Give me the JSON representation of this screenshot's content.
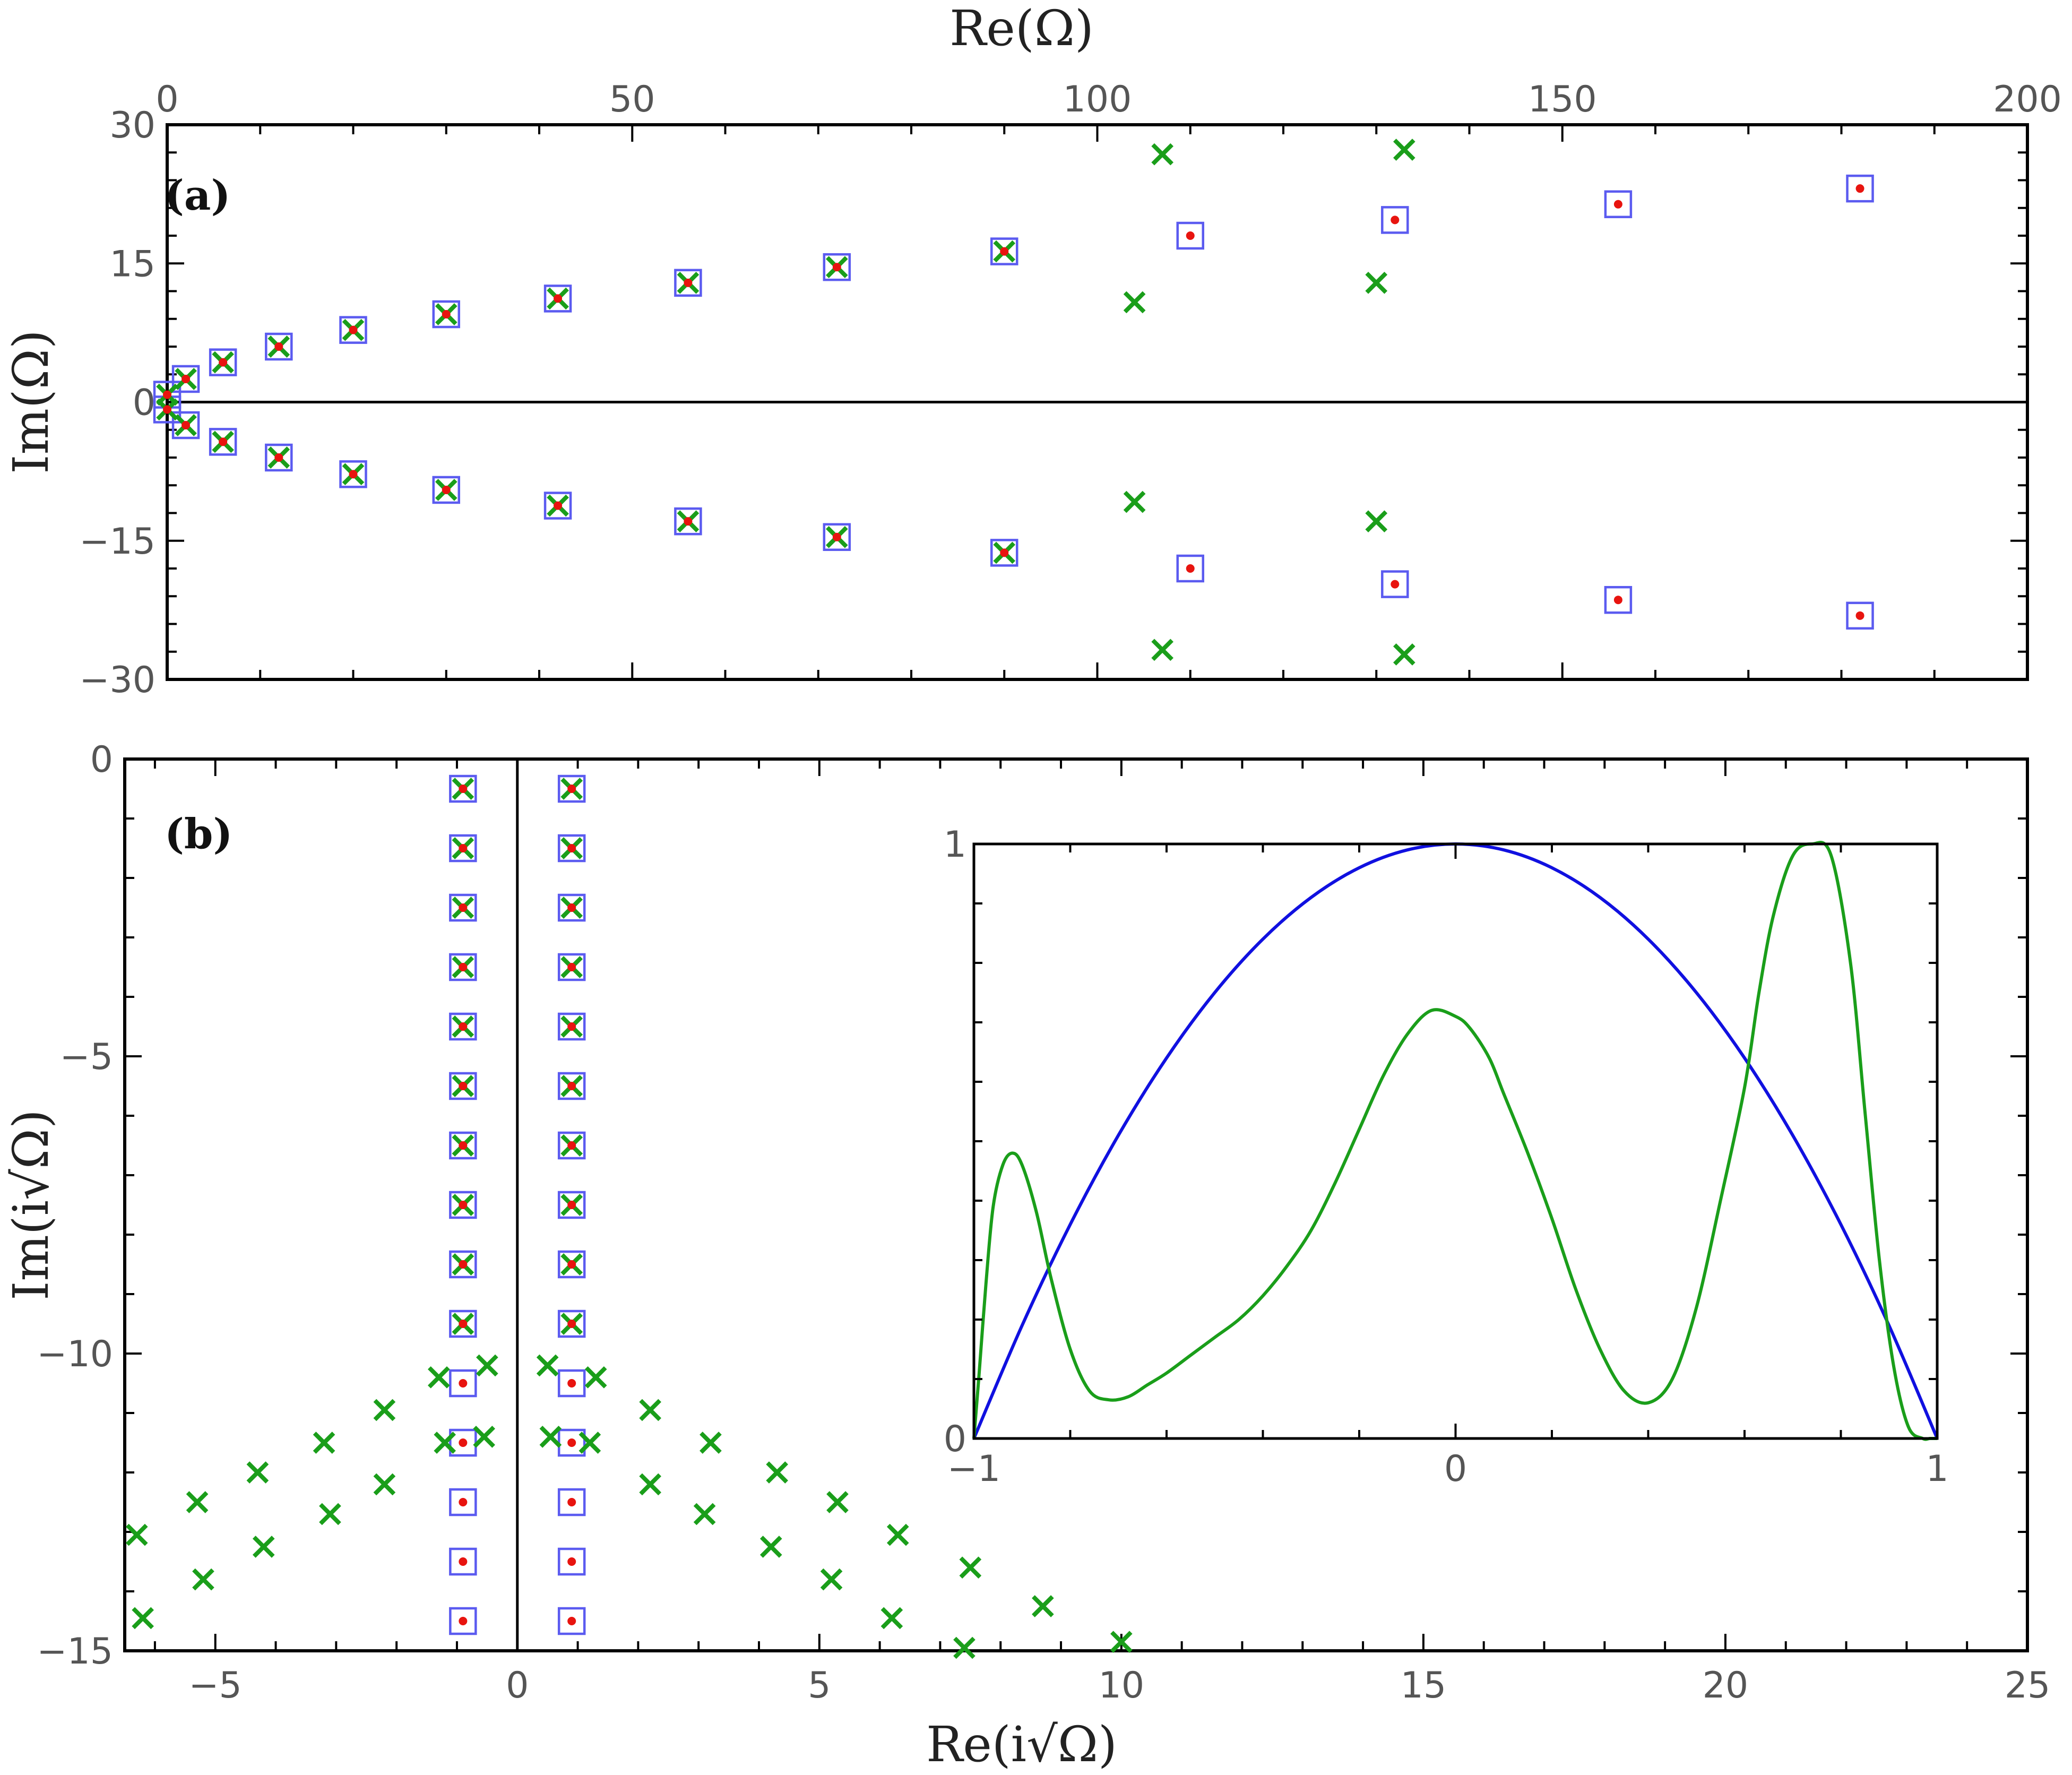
{
  "colors": {
    "square": "#5b5bf0",
    "cross": "#1a9e1a",
    "dot": "#e8140f",
    "inset_blue": "#1010e0",
    "inset_green": "#1a9e1a",
    "axis": "#000000"
  },
  "chart_data": [
    {
      "id": "a",
      "type": "scatter",
      "panel_label": "(a)",
      "xlabel": "Re(Ω)",
      "ylabel": "Im(Ω)",
      "xlim": [
        0,
        200
      ],
      "ylim": [
        -30,
        30
      ],
      "x_axis_position": "top",
      "xticks": [
        0,
        50,
        100,
        150,
        200
      ],
      "yticks": [
        -30,
        -15,
        0,
        15,
        30
      ],
      "xtick_labels": [
        "0",
        "50",
        "100",
        "150",
        "200"
      ],
      "ytick_labels": [
        "−30",
        "−15",
        "0",
        "15",
        "30"
      ],
      "zero_line": "y=0",
      "series": [
        {
          "marker": "square",
          "points": [
            [
              0,
              0.8
            ],
            [
              0,
              -0.8
            ],
            [
              2,
              2.5
            ],
            [
              2,
              -2.5
            ],
            [
              6,
              4.3
            ],
            [
              6,
              -4.3
            ],
            [
              12,
              6.0
            ],
            [
              12,
              -6.0
            ],
            [
              20,
              7.8
            ],
            [
              20,
              -7.8
            ],
            [
              30,
              9.5
            ],
            [
              30,
              -9.5
            ],
            [
              42,
              11.2
            ],
            [
              42,
              -11.2
            ],
            [
              56,
              12.9
            ],
            [
              56,
              -12.9
            ],
            [
              72,
              14.6
            ],
            [
              72,
              -14.6
            ],
            [
              90,
              16.3
            ],
            [
              90,
              -16.3
            ],
            [
              110,
              18.0
            ],
            [
              110,
              -18.0
            ],
            [
              132,
              19.7
            ],
            [
              132,
              -19.7
            ],
            [
              156,
              21.4
            ],
            [
              156,
              -21.4
            ],
            [
              182,
              23.1
            ],
            [
              182,
              -23.1
            ]
          ]
        },
        {
          "marker": "dot",
          "points": [
            [
              0,
              0.8
            ],
            [
              0,
              -0.8
            ],
            [
              2,
              2.5
            ],
            [
              2,
              -2.5
            ],
            [
              6,
              4.3
            ],
            [
              6,
              -4.3
            ],
            [
              12,
              6.0
            ],
            [
              12,
              -6.0
            ],
            [
              20,
              7.8
            ],
            [
              20,
              -7.8
            ],
            [
              30,
              9.5
            ],
            [
              30,
              -9.5
            ],
            [
              42,
              11.2
            ],
            [
              42,
              -11.2
            ],
            [
              56,
              12.9
            ],
            [
              56,
              -12.9
            ],
            [
              72,
              14.6
            ],
            [
              72,
              -14.6
            ],
            [
              90,
              16.3
            ],
            [
              90,
              -16.3
            ],
            [
              110,
              18.0
            ],
            [
              110,
              -18.0
            ],
            [
              132,
              19.7
            ],
            [
              132,
              -19.7
            ],
            [
              156,
              21.4
            ],
            [
              156,
              -21.4
            ],
            [
              182,
              23.1
            ],
            [
              182,
              -23.1
            ]
          ]
        },
        {
          "marker": "cross",
          "points": [
            [
              0,
              0.8
            ],
            [
              0,
              -0.8
            ],
            [
              2,
              2.5
            ],
            [
              2,
              -2.5
            ],
            [
              6,
              4.3
            ],
            [
              6,
              -4.3
            ],
            [
              12,
              6.0
            ],
            [
              12,
              -6.0
            ],
            [
              20,
              7.8
            ],
            [
              20,
              -7.8
            ],
            [
              30,
              9.5
            ],
            [
              30,
              -9.5
            ],
            [
              42,
              11.2
            ],
            [
              42,
              -11.2
            ],
            [
              56,
              12.9
            ],
            [
              56,
              -12.9
            ],
            [
              72,
              14.6
            ],
            [
              72,
              -14.6
            ],
            [
              90,
              16.3
            ],
            [
              90,
              -16.3
            ],
            [
              104,
              10.8
            ],
            [
              104,
              -10.8
            ],
            [
              107,
              26.8
            ],
            [
              107,
              -26.8
            ],
            [
              130,
              12.9
            ],
            [
              130,
              -12.9
            ],
            [
              133,
              27.3
            ],
            [
              133,
              -27.3
            ]
          ]
        }
      ]
    },
    {
      "id": "b",
      "type": "scatter",
      "panel_label": "(b)",
      "xlabel": "Re(i√Ω)",
      "ylabel": "Im(i√Ω)",
      "xlim": [
        -6.5,
        25
      ],
      "ylim": [
        -15,
        0
      ],
      "xticks": [
        -5,
        0,
        5,
        10,
        15,
        20,
        25
      ],
      "yticks": [
        -15,
        -10,
        -5,
        0
      ],
      "xtick_labels": [
        "−5",
        "0",
        "5",
        "10",
        "15",
        "20",
        "25"
      ],
      "ytick_labels": [
        "−15",
        "−10",
        "−5",
        "0"
      ],
      "zero_line": "x=0",
      "series": [
        {
          "marker": "square",
          "points": [
            [
              -0.9,
              -0.5
            ],
            [
              0.9,
              -0.5
            ],
            [
              -0.9,
              -1.5
            ],
            [
              0.9,
              -1.5
            ],
            [
              -0.9,
              -2.5
            ],
            [
              0.9,
              -2.5
            ],
            [
              -0.9,
              -3.5
            ],
            [
              0.9,
              -3.5
            ],
            [
              -0.9,
              -4.5
            ],
            [
              0.9,
              -4.5
            ],
            [
              -0.9,
              -5.5
            ],
            [
              0.9,
              -5.5
            ],
            [
              -0.9,
              -6.5
            ],
            [
              0.9,
              -6.5
            ],
            [
              -0.9,
              -7.5
            ],
            [
              0.9,
              -7.5
            ],
            [
              -0.9,
              -8.5
            ],
            [
              0.9,
              -8.5
            ],
            [
              -0.9,
              -9.5
            ],
            [
              0.9,
              -9.5
            ],
            [
              -0.9,
              -10.5
            ],
            [
              0.9,
              -10.5
            ],
            [
              -0.9,
              -11.5
            ],
            [
              0.9,
              -11.5
            ],
            [
              -0.9,
              -12.5
            ],
            [
              0.9,
              -12.5
            ],
            [
              -0.9,
              -13.5
            ],
            [
              0.9,
              -13.5
            ],
            [
              -0.9,
              -14.5
            ],
            [
              0.9,
              -14.5
            ]
          ]
        },
        {
          "marker": "dot",
          "points": [
            [
              -0.9,
              -0.5
            ],
            [
              0.9,
              -0.5
            ],
            [
              -0.9,
              -1.5
            ],
            [
              0.9,
              -1.5
            ],
            [
              -0.9,
              -2.5
            ],
            [
              0.9,
              -2.5
            ],
            [
              -0.9,
              -3.5
            ],
            [
              0.9,
              -3.5
            ],
            [
              -0.9,
              -4.5
            ],
            [
              0.9,
              -4.5
            ],
            [
              -0.9,
              -5.5
            ],
            [
              0.9,
              -5.5
            ],
            [
              -0.9,
              -6.5
            ],
            [
              0.9,
              -6.5
            ],
            [
              -0.9,
              -7.5
            ],
            [
              0.9,
              -7.5
            ],
            [
              -0.9,
              -8.5
            ],
            [
              0.9,
              -8.5
            ],
            [
              -0.9,
              -9.5
            ],
            [
              0.9,
              -9.5
            ],
            [
              -0.9,
              -10.5
            ],
            [
              0.9,
              -10.5
            ],
            [
              -0.9,
              -11.5
            ],
            [
              0.9,
              -11.5
            ],
            [
              -0.9,
              -12.5
            ],
            [
              0.9,
              -12.5
            ],
            [
              -0.9,
              -13.5
            ],
            [
              0.9,
              -13.5
            ],
            [
              -0.9,
              -14.5
            ],
            [
              0.9,
              -14.5
            ]
          ]
        },
        {
          "marker": "cross",
          "points": [
            [
              -0.9,
              -0.5
            ],
            [
              0.9,
              -0.5
            ],
            [
              -0.9,
              -1.5
            ],
            [
              0.9,
              -1.5
            ],
            [
              -0.9,
              -2.5
            ],
            [
              0.9,
              -2.5
            ],
            [
              -0.9,
              -3.5
            ],
            [
              0.9,
              -3.5
            ],
            [
              -0.9,
              -4.5
            ],
            [
              0.9,
              -4.5
            ],
            [
              -0.9,
              -5.5
            ],
            [
              0.9,
              -5.5
            ],
            [
              -0.9,
              -6.5
            ],
            [
              0.9,
              -6.5
            ],
            [
              -0.9,
              -7.5
            ],
            [
              0.9,
              -7.5
            ],
            [
              -0.9,
              -8.5
            ],
            [
              0.9,
              -8.5
            ],
            [
              -0.9,
              -9.5
            ],
            [
              0.9,
              -9.5
            ],
            [
              -1.3,
              -10.4
            ],
            [
              1.3,
              -10.4
            ],
            [
              -0.5,
              -10.2
            ],
            [
              0.5,
              -10.2
            ],
            [
              -0.55,
              -11.4
            ],
            [
              0.55,
              -11.4
            ],
            [
              -1.2,
              -11.5
            ],
            [
              1.2,
              -11.5
            ],
            [
              -2.2,
              -10.95
            ],
            [
              2.2,
              -10.95
            ],
            [
              -3.2,
              -11.5
            ],
            [
              3.2,
              -11.5
            ],
            [
              -2.2,
              -12.2
            ],
            [
              2.2,
              -12.2
            ],
            [
              -4.3,
              -12.0
            ],
            [
              4.3,
              -12.0
            ],
            [
              -3.1,
              -12.7
            ],
            [
              3.1,
              -12.7
            ],
            [
              -5.3,
              -12.5
            ],
            [
              5.3,
              -12.5
            ],
            [
              -4.2,
              -13.25
            ],
            [
              4.2,
              -13.25
            ],
            [
              -6.3,
              -13.05
            ],
            [
              6.3,
              -13.05
            ],
            [
              -5.2,
              -13.8
            ],
            [
              5.2,
              -13.8
            ],
            [
              -6.2,
              -14.45
            ],
            [
              6.2,
              -14.45
            ],
            [
              7.5,
              -13.6
            ],
            [
              7.4,
              -14.95
            ],
            [
              8.7,
              -14.25
            ],
            [
              10.0,
              -14.85
            ]
          ]
        }
      ],
      "inset": {
        "type": "line",
        "xlim": [
          -1,
          1
        ],
        "ylim": [
          0,
          1
        ],
        "xticks": [
          -1,
          0,
          1
        ],
        "yticks": [
          0,
          1
        ],
        "xtick_labels": [
          "−1",
          "0",
          "1"
        ],
        "ytick_labels": [
          "0",
          "1"
        ],
        "series": [
          {
            "color": "blue",
            "x": [
              -1,
              -0.9,
              -0.8,
              -0.7,
              -0.6,
              -0.5,
              -0.4,
              -0.3,
              -0.2,
              -0.1,
              0,
              0.1,
              0.2,
              0.3,
              0.4,
              0.5,
              0.6,
              0.7,
              0.8,
              0.9,
              1
            ],
            "y": [
              0,
              0.19,
              0.36,
              0.51,
              0.64,
              0.75,
              0.84,
              0.91,
              0.96,
              0.99,
              1,
              0.99,
              0.96,
              0.91,
              0.84,
              0.75,
              0.64,
              0.51,
              0.36,
              0.19,
              0
            ]
          },
          {
            "color": "green",
            "x": [
              -1,
              -0.99,
              -0.975,
              -0.96,
              -0.94,
              -0.92,
              -0.9,
              -0.87,
              -0.84,
              -0.8,
              -0.76,
              -0.72,
              -0.68,
              -0.64,
              -0.6,
              -0.55,
              -0.5,
              -0.45,
              -0.4,
              -0.35,
              -0.3,
              -0.25,
              -0.2,
              -0.15,
              -0.1,
              -0.05,
              0,
              0.03,
              0.07,
              0.1,
              0.15,
              0.2,
              0.25,
              0.3,
              0.35,
              0.4,
              0.45,
              0.5,
              0.55,
              0.6,
              0.63,
              0.66,
              0.7,
              0.74,
              0.78,
              0.82,
              0.85,
              0.88,
              0.91,
              0.94,
              0.97,
              0.985,
              1
            ],
            "y": [
              0,
              0.1,
              0.26,
              0.39,
              0.46,
              0.48,
              0.46,
              0.38,
              0.27,
              0.15,
              0.08,
              0.065,
              0.07,
              0.09,
              0.11,
              0.14,
              0.17,
              0.2,
              0.24,
              0.29,
              0.35,
              0.43,
              0.52,
              0.61,
              0.68,
              0.72,
              0.71,
              0.69,
              0.64,
              0.58,
              0.48,
              0.37,
              0.25,
              0.15,
              0.08,
              0.06,
              0.1,
              0.22,
              0.4,
              0.59,
              0.75,
              0.88,
              0.98,
              1.0,
              0.98,
              0.8,
              0.55,
              0.3,
              0.12,
              0.02,
              0,
              0,
              0
            ]
          }
        ]
      }
    }
  ]
}
